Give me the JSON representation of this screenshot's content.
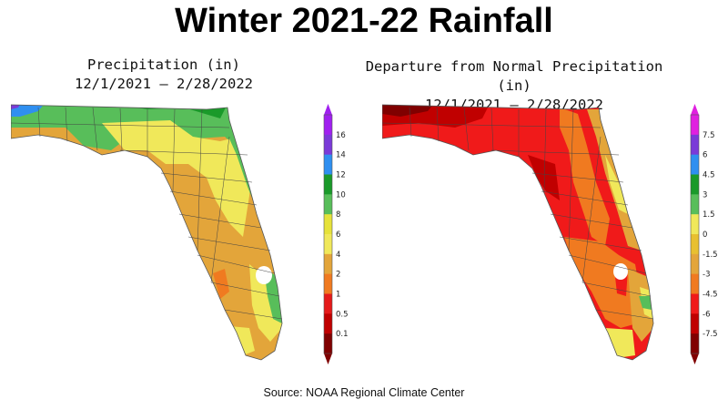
{
  "title": "Winter 2021-22 Rainfall",
  "source": "Source:  NOAA Regional Climate Center",
  "maps": [
    {
      "title_line1": "Precipitation (in)",
      "title_line2": "12/1/2021 – 2/28/2022",
      "legend_labels": [
        "16",
        "14",
        "12",
        "10",
        "8",
        "6",
        "4",
        "2",
        "1",
        "0.5",
        "0.1"
      ],
      "legend_colors": [
        "#a020f0",
        "#7a3ad8",
        "#2f8ff0",
        "#1a9a2a",
        "#58be5a",
        "#e6e23a",
        "#f0e85a",
        "#e3a53a",
        "#f07a20",
        "#e51a1a",
        "#c00000",
        "#800000"
      ]
    },
    {
      "title_line1": "Departure from Normal Precipitation (in)",
      "title_line2": "12/1/2021 – 2/28/2022",
      "legend_labels": [
        "7.5",
        "6",
        "4.5",
        "3",
        "1.5",
        "0",
        "-1.5",
        "-3",
        "-4.5",
        "-6",
        "-7.5"
      ],
      "legend_colors": [
        "#e020e0",
        "#7a3ad8",
        "#2f8ff0",
        "#1a9a2a",
        "#58be5a",
        "#f0e85a",
        "#e8c030",
        "#e3a53a",
        "#f07a20",
        "#f01a1a",
        "#c00000",
        "#800000"
      ]
    }
  ]
}
